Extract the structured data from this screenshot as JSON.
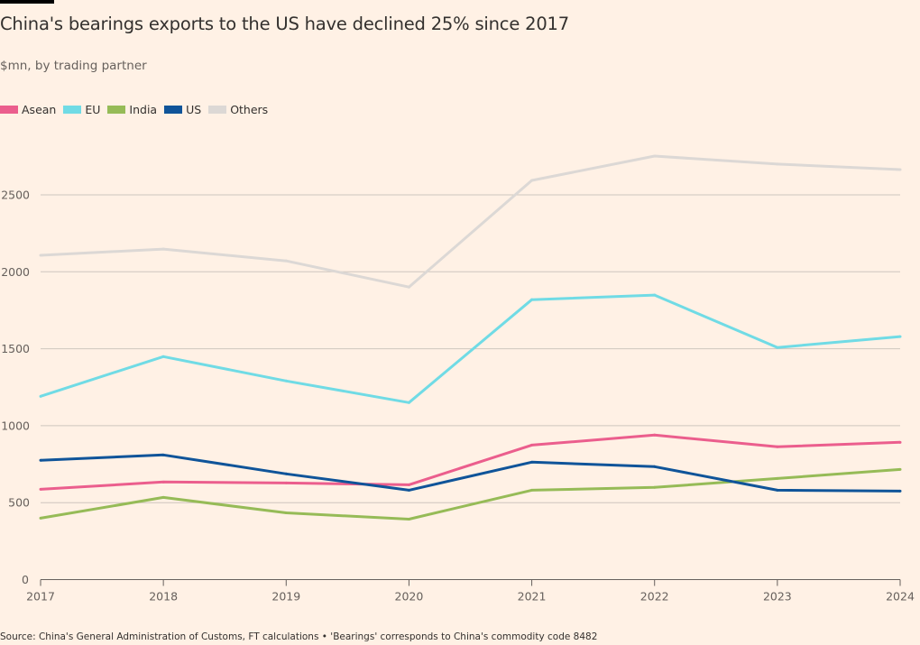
{
  "title": "China's bearings exports to the US have declined 25% since 2017",
  "subtitle": "$mn, by trading partner",
  "source": "Source: China's General Administration of Customs, FT calculations • 'Bearings' corresponds to China's commodity code 8482",
  "legend": [
    {
      "name": "Asean",
      "color": "#eb5e8d"
    },
    {
      "name": "EU",
      "color": "#70dbe5"
    },
    {
      "name": "India",
      "color": "#96bb57"
    },
    {
      "name": "US",
      "color": "#0f5499"
    },
    {
      "name": "Others",
      "color": "#dcd8d5"
    }
  ],
  "chart_data": {
    "type": "line",
    "title": "China's bearings exports to the US have declined 25% since 2017",
    "subtitle": "$mn, by trading partner",
    "xlabel": "",
    "ylabel": "$mn",
    "x": [
      "2017",
      "2018",
      "2019",
      "2020",
      "2021",
      "2022",
      "2023",
      "2024"
    ],
    "ylim": [
      0,
      2800
    ],
    "yticks": [
      0,
      500,
      1000,
      1500,
      2000,
      2500
    ],
    "grid": true,
    "legend_position": "top-left",
    "series": [
      {
        "name": "Others",
        "color": "#dcd8d5",
        "values": [
          2107,
          2148,
          2071,
          1901,
          2594,
          2752,
          2700,
          2664
        ]
      },
      {
        "name": "EU",
        "color": "#70dbe5",
        "values": [
          1191,
          1449,
          1291,
          1150,
          1819,
          1849,
          1508,
          1579
        ]
      },
      {
        "name": "India",
        "color": "#96bb57",
        "values": [
          399,
          534,
          434,
          393,
          581,
          599,
          657,
          716
        ]
      },
      {
        "name": "Asean",
        "color": "#eb5e8d",
        "values": [
          587,
          634,
          628,
          616,
          874,
          939,
          863,
          892
        ]
      },
      {
        "name": "US",
        "color": "#0f5499",
        "values": [
          775,
          810,
          687,
          581,
          763,
          734,
          581,
          575
        ]
      }
    ]
  }
}
